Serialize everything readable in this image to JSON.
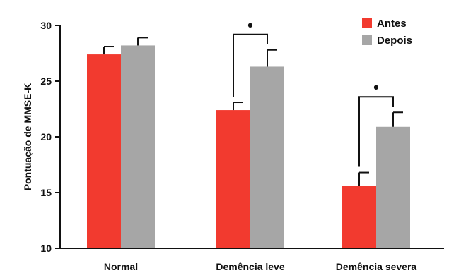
{
  "chart_data": {
    "type": "bar",
    "title": "",
    "xlabel": "",
    "ylabel": "Pontuação de MMSE-K",
    "ylim": [
      10,
      30
    ],
    "yticks": [
      "10",
      "15",
      "20",
      "25",
      "30"
    ],
    "categories": [
      "Normal",
      "Demência leve",
      "Demência severa"
    ],
    "series": [
      {
        "name": "Antes",
        "values": [
          27.4,
          22.4,
          15.6
        ],
        "errors": [
          0.7,
          0.7,
          1.2
        ],
        "color": "#f23a2f"
      },
      {
        "name": "Depois",
        "values": [
          28.2,
          26.3,
          20.9
        ],
        "errors": [
          0.7,
          1.5,
          1.3
        ],
        "color": "#a6a6a6"
      }
    ],
    "significance": [
      {
        "category": "Demência leve",
        "marker": "•"
      },
      {
        "category": "Demência severa",
        "marker": "•"
      }
    ],
    "legend": {
      "position": "top-right"
    },
    "grid": false
  }
}
